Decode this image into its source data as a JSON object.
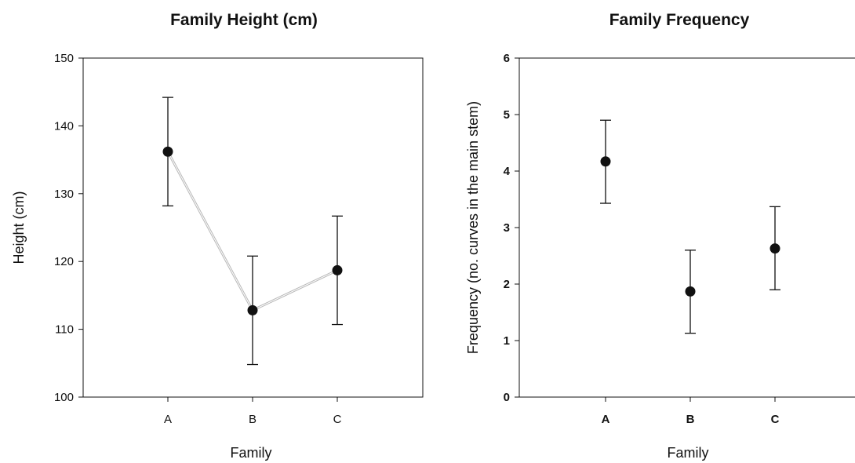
{
  "chart_data": [
    {
      "type": "line",
      "title": "Family Height (cm)",
      "xlabel": "Family",
      "ylabel": "Height (cm)",
      "categories": [
        "A",
        "B",
        "C"
      ],
      "values": [
        136.2,
        112.8,
        118.7
      ],
      "error_low": [
        128.2,
        104.8,
        110.7
      ],
      "error_high": [
        144.2,
        120.8,
        126.7
      ],
      "ylim": [
        100,
        150
      ],
      "yticks": [
        "100",
        "110",
        "120",
        "130",
        "140",
        "150"
      ],
      "connect_points": true,
      "grid": false,
      "bold_ticks": false
    },
    {
      "type": "scatter",
      "title": "Family Frequency",
      "xlabel": "Family",
      "ylabel": "Frequency (no. curves in the main stem)",
      "categories": [
        "A",
        "B",
        "C"
      ],
      "values": [
        4.17,
        1.87,
        2.63
      ],
      "error_low": [
        3.43,
        1.13,
        1.9
      ],
      "error_high": [
        4.9,
        2.6,
        3.37
      ],
      "ylim": [
        0,
        6
      ],
      "yticks": [
        "0",
        "1",
        "2",
        "3",
        "4",
        "5",
        "6"
      ],
      "connect_points": false,
      "grid": false,
      "bold_ticks": true
    }
  ],
  "colors": {
    "marker": "#111111",
    "connector": "#b8b8b8",
    "axis": "#111111"
  }
}
